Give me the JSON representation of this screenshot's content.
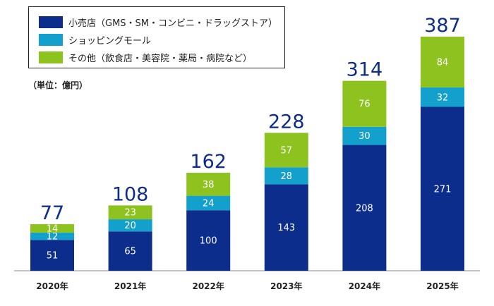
{
  "chart_data": {
    "type": "bar",
    "stacked": true,
    "categories": [
      "2020年",
      "2021年",
      "2022年",
      "2023年",
      "2024年",
      "2025年"
    ],
    "series": [
      {
        "name": "小売店（GMS・SM・コンビニ・ドラッグストア）",
        "color": "#0d2d8c",
        "values": [
          51,
          65,
          100,
          143,
          208,
          271
        ]
      },
      {
        "name": "ショッピングモール",
        "color": "#14a0cc",
        "values": [
          12,
          20,
          24,
          28,
          30,
          32
        ]
      },
      {
        "name": "その他（飲食店・美容院・薬局・病院など）",
        "color": "#8dc21f",
        "values": [
          14,
          23,
          38,
          57,
          76,
          84
        ]
      }
    ],
    "totals": [
      77,
      108,
      162,
      228,
      314,
      387
    ],
    "total_label_color": "#0d2d8c",
    "unit_label": "（単位：億円）",
    "legend_position": "top-left",
    "grid": false,
    "ylim": [
      0,
      387
    ]
  }
}
